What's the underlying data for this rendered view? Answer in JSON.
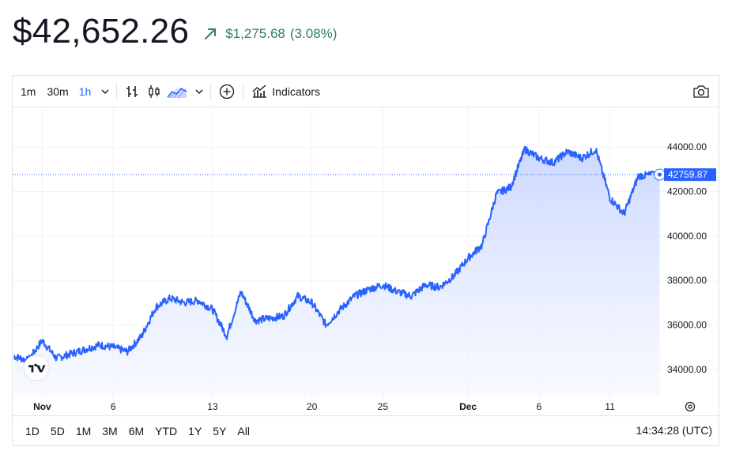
{
  "header": {
    "price": "$42,652.26",
    "change_value": "$1,275.68",
    "change_pct": "(3.08%)",
    "trend_icon": "arrow-up-right-icon",
    "change_color": "#2f7d6e"
  },
  "toolbar": {
    "intervals": [
      "1m",
      "30m",
      "1h"
    ],
    "active_interval": "1h",
    "indicators_label": "Indicators",
    "icons": [
      "chevron-down-icon",
      "bars-icon",
      "candles-icon",
      "area-icon",
      "chevron-down-icon",
      "add-circle-icon",
      "indicators-icon",
      "camera-icon"
    ]
  },
  "ranges": [
    "1D",
    "5D",
    "1M",
    "3M",
    "6M",
    "YTD",
    "1Y",
    "5Y",
    "All"
  ],
  "clock": "14:34:28 (UTC)",
  "last_price_label": "42759.87",
  "colors": {
    "line": "#2962ff",
    "fill_top": "#c9d6ff",
    "fill_bottom": "#f3f6ff",
    "price_tag": "#2962ff",
    "grid": "#f0f3fa"
  },
  "chart_data": {
    "type": "area",
    "x_unit": "date",
    "x_ticks": [
      "Nov",
      "6",
      "13",
      "20",
      "25",
      "Dec",
      "6",
      "11"
    ],
    "y_ticks": [
      "44000.00",
      "42000.00",
      "40000.00",
      "38000.00",
      "36000.00",
      "34000.00"
    ],
    "ylim": [
      33000,
      45500
    ],
    "grid": true,
    "last_value": 42759.87,
    "series": [
      {
        "x": [
          "2023-10-30",
          "2023-10-31",
          "2023-11-01",
          "2023-11-02",
          "2023-11-03",
          "2023-11-04",
          "2023-11-05",
          "2023-11-06",
          "2023-11-07",
          "2023-11-08",
          "2023-11-09",
          "2023-11-10",
          "2023-11-11",
          "2023-11-12",
          "2023-11-13",
          "2023-11-14",
          "2023-11-15",
          "2023-11-16",
          "2023-11-17",
          "2023-11-18",
          "2023-11-19",
          "2023-11-20",
          "2023-11-21",
          "2023-11-22",
          "2023-11-23",
          "2023-11-24",
          "2023-11-25",
          "2023-11-26",
          "2023-11-27",
          "2023-11-28",
          "2023-11-29",
          "2023-11-30",
          "2023-12-01",
          "2023-12-02",
          "2023-12-03",
          "2023-12-04",
          "2023-12-05",
          "2023-12-06",
          "2023-12-07",
          "2023-12-08",
          "2023-12-09",
          "2023-12-10",
          "2023-12-11",
          "2023-12-12",
          "2023-12-13",
          "2023-12-14"
        ],
        "values": [
          34600,
          34400,
          35300,
          34500,
          34700,
          34900,
          35100,
          35000,
          34800,
          35500,
          36800,
          37200,
          37000,
          37100,
          36700,
          35500,
          37500,
          36200,
          36300,
          36400,
          37300,
          37000,
          36000,
          36700,
          37300,
          37600,
          37800,
          37500,
          37300,
          37800,
          37700,
          38200,
          39000,
          39600,
          41900,
          42200,
          43900,
          43500,
          43300,
          43800,
          43500,
          43900,
          41700,
          41000,
          42700,
          42750
        ]
      }
    ]
  }
}
